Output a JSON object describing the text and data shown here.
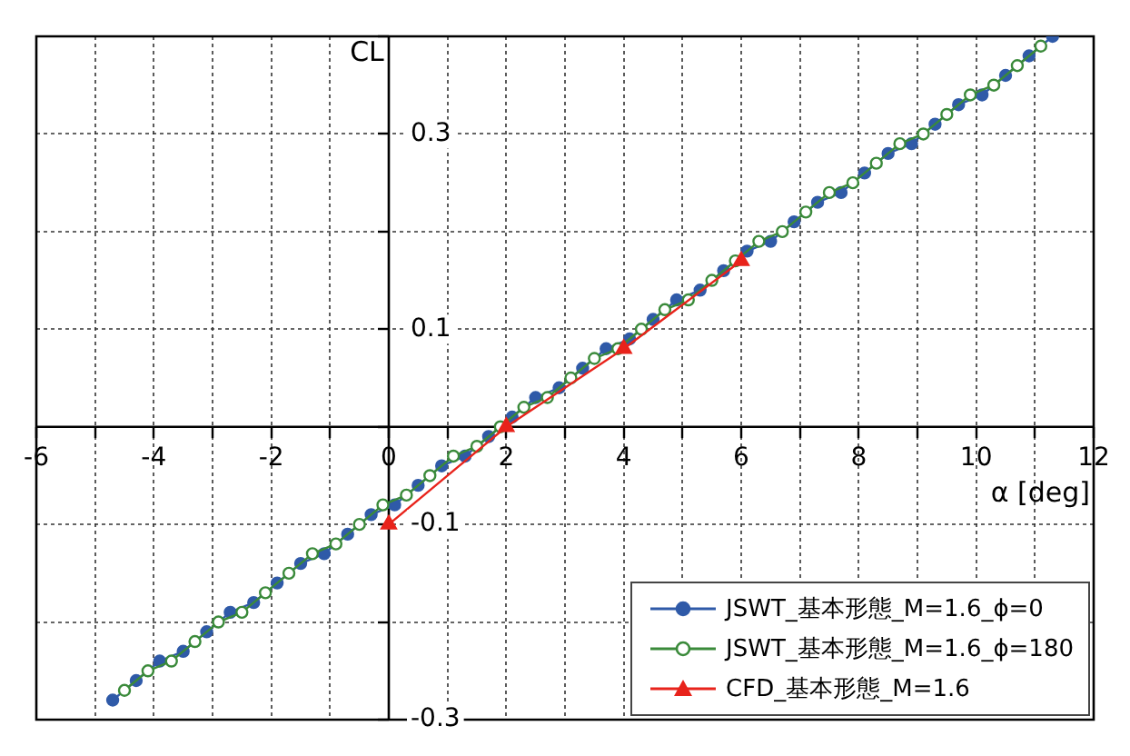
{
  "chart_data": {
    "type": "line",
    "xlabel": "α [deg]",
    "ylabel": "CL",
    "xlim": [
      -6,
      12
    ],
    "ylim": [
      -0.3,
      0.4
    ],
    "xticks": [
      -6,
      {
        "value": -5,
        "label": null
      },
      -4,
      {
        "value": -3,
        "label": null
      },
      -2,
      {
        "value": -1,
        "label": null
      },
      0,
      {
        "value": 1,
        "label": null
      },
      2,
      {
        "value": 3,
        "label": null
      },
      4,
      {
        "value": 5,
        "label": null
      },
      6,
      {
        "value": 7,
        "label": null
      },
      8,
      {
        "value": 9,
        "label": null
      },
      10,
      {
        "value": 11,
        "label": null
      },
      12
    ],
    "yticks": [
      {
        "value": -0.3,
        "label": "-0.3"
      },
      {
        "value": -0.2,
        "label": null
      },
      {
        "value": -0.1,
        "label": "-0.1"
      },
      {
        "value": 0,
        "label": null
      },
      {
        "value": 0.1,
        "label": "0.1"
      },
      {
        "value": 0.2,
        "label": null
      },
      {
        "value": 0.3,
        "label": "0.3"
      },
      {
        "value": 0.4,
        "label": null
      }
    ],
    "grid": true,
    "legend": "bottom right",
    "series": [
      {
        "name": "JSWT_基本形態_M=1.6_ϕ=0",
        "color": "#2f5aa8",
        "marker": "circle",
        "x": [
          -4.7,
          -4.3,
          -3.9,
          -3.5,
          -3.1,
          -2.7,
          -2.3,
          -1.9,
          -1.5,
          -1.1,
          -0.7,
          -0.3,
          0.1,
          0.5,
          0.9,
          1.3,
          1.7,
          2.1,
          2.5,
          2.9,
          3.3,
          3.7,
          4.1,
          4.5,
          4.9,
          5.3,
          5.7,
          6.1,
          6.5,
          6.9,
          7.3,
          7.7,
          8.1,
          8.5,
          8.9,
          9.3,
          9.7,
          10.1,
          10.5,
          10.9,
          11.3
        ],
        "values": [
          -0.28,
          -0.26,
          -0.24,
          -0.23,
          -0.21,
          -0.19,
          -0.18,
          -0.16,
          -0.14,
          -0.13,
          -0.11,
          -0.09,
          -0.08,
          -0.06,
          -0.04,
          -0.03,
          -0.01,
          0.01,
          0.03,
          0.04,
          0.06,
          0.08,
          0.09,
          0.11,
          0.13,
          0.14,
          0.16,
          0.18,
          0.19,
          0.21,
          0.23,
          0.24,
          0.26,
          0.28,
          0.29,
          0.31,
          0.33,
          0.34,
          0.36,
          0.38,
          0.4
        ]
      },
      {
        "name": "JSWT_基本形態_M=1.6_ϕ=180",
        "color": "#3a8a3a",
        "marker": "circle",
        "x": [
          -4.5,
          -4.1,
          -3.7,
          -3.3,
          -2.9,
          -2.5,
          -2.1,
          -1.7,
          -1.3,
          -0.9,
          -0.5,
          -0.1,
          0.3,
          0.7,
          1.1,
          1.5,
          1.9,
          2.3,
          2.7,
          3.1,
          3.5,
          3.9,
          4.3,
          4.7,
          5.1,
          5.5,
          5.9,
          6.3,
          6.7,
          7.1,
          7.5,
          7.9,
          8.3,
          8.7,
          9.1,
          9.5,
          9.9,
          10.3,
          10.7,
          11.1
        ],
        "values": [
          -0.27,
          -0.25,
          -0.24,
          -0.22,
          -0.2,
          -0.19,
          -0.17,
          -0.15,
          -0.13,
          -0.12,
          -0.1,
          -0.08,
          -0.07,
          -0.05,
          -0.03,
          -0.02,
          0,
          0.02,
          0.03,
          0.05,
          0.07,
          0.08,
          0.1,
          0.12,
          0.13,
          0.15,
          0.17,
          0.19,
          0.2,
          0.22,
          0.24,
          0.25,
          0.27,
          0.29,
          0.3,
          0.32,
          0.34,
          0.35,
          0.37,
          0.39
        ]
      },
      {
        "name": "CFD_基本形態_M=1.6",
        "color": "#e8231b",
        "marker": "triangle",
        "x": [
          0,
          2,
          4,
          6
        ],
        "values": [
          -0.1,
          0,
          0.08,
          0.17
        ]
      }
    ]
  }
}
